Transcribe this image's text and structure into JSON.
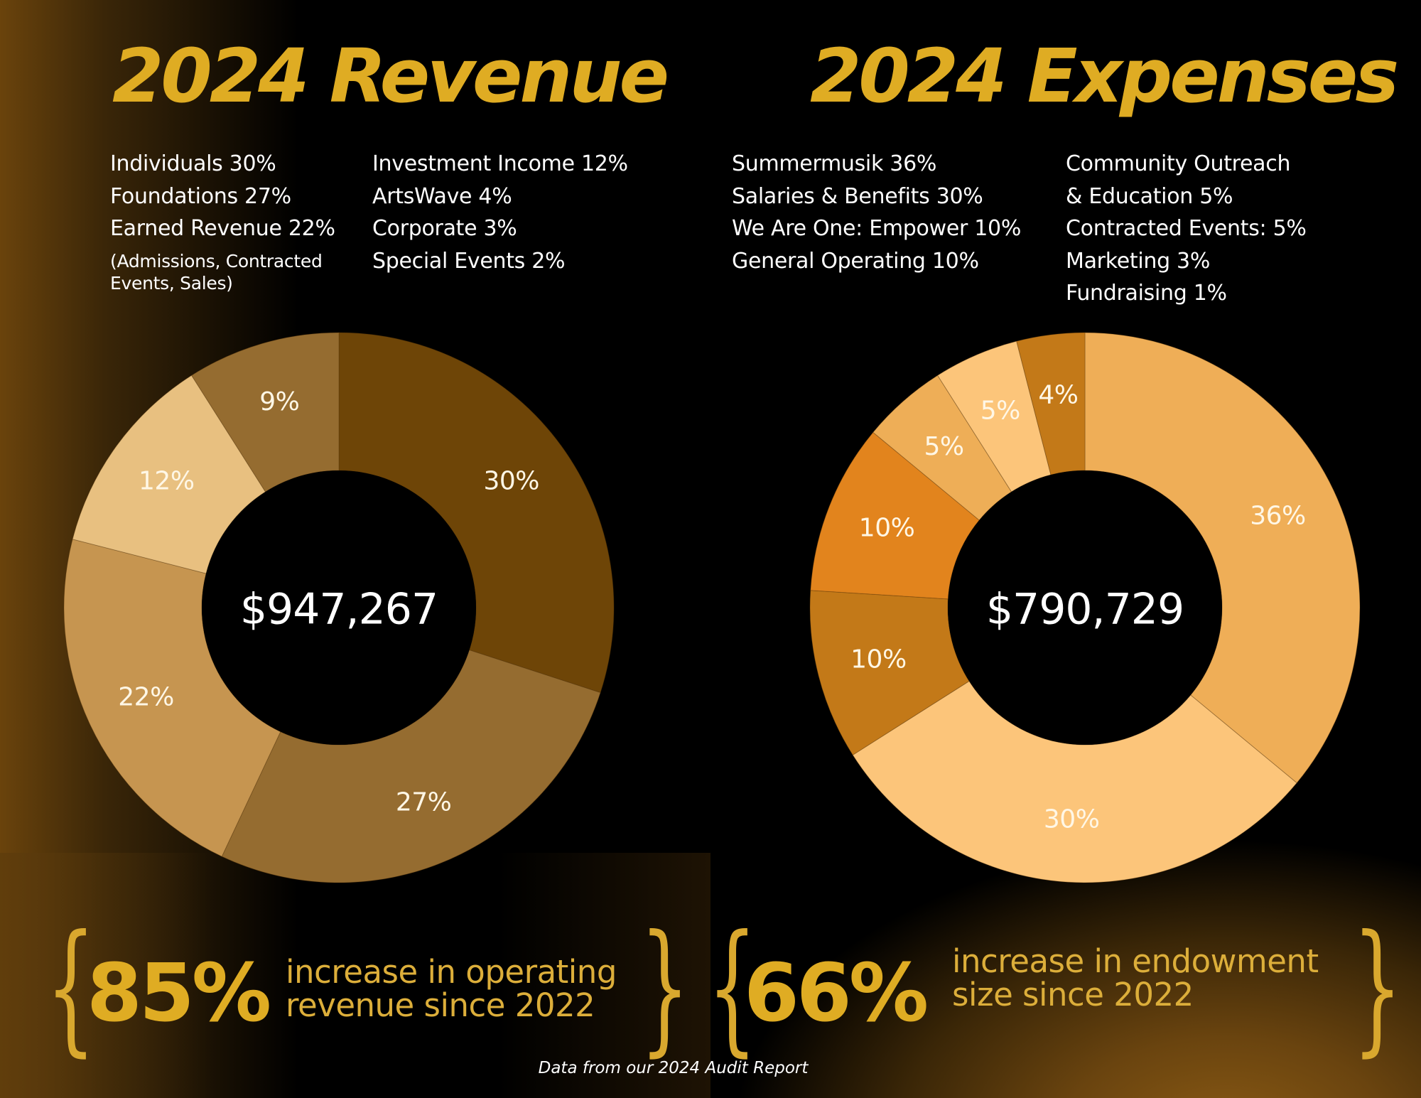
{
  "revenue": {
    "title": "2024 Revenue",
    "legend_col1": [
      "Individuals 30%",
      "Foundations 27%",
      "Earned Revenue 22%"
    ],
    "legend_note": [
      "(Admissions, Contracted",
      "Events, Sales)"
    ],
    "legend_col2": [
      "Investment Income 12%",
      "ArtsWave 4%",
      "Corporate 3%",
      "Special Events 2%"
    ],
    "total": "$947,267"
  },
  "expenses": {
    "title": "2024 Expenses",
    "legend_col1": [
      "Summermusik 36%",
      "Salaries & Benefits 30%",
      "We Are One: Empower 10%",
      "General Operating 10%"
    ],
    "legend_col2": [
      "Community Outreach",
      "& Education 5%",
      "Contracted Events: 5%",
      "Marketing 3%",
      "Fundraising 1%"
    ],
    "total": "$790,729"
  },
  "stats": [
    {
      "value": "85%",
      "line1": "increase in operating",
      "line2": "revenue since 2022"
    },
    {
      "value": "66%",
      "line1": "increase in endowment",
      "line2": "size since 2022"
    }
  ],
  "braces": {
    "open": "{",
    "close": "}"
  },
  "footer": "Data from our 2024 Audit Report",
  "colors": {
    "title": "#dfac23",
    "stat_text": "#dcae3a",
    "background": "#000000"
  },
  "chart_data": [
    {
      "type": "pie",
      "title": "2024 Revenue",
      "center_label": "$947,267",
      "donut": true,
      "start": "12 o'clock, clockwise",
      "slices": [
        {
          "label": "Individuals",
          "value": 30,
          "display": "30%",
          "color": "#6e4507"
        },
        {
          "label": "Foundations",
          "value": 27,
          "display": "27%",
          "color": "#956c30"
        },
        {
          "label": "Earned Revenue",
          "value": 22,
          "display": "22%",
          "color": "#c69550"
        },
        {
          "label": "Investment Income",
          "value": 12,
          "display": "12%",
          "color": "#e8c080"
        },
        {
          "label": "ArtsWave + Corporate + Special Events",
          "value": 9,
          "display": "9%",
          "color": "#956c30"
        }
      ]
    },
    {
      "type": "pie",
      "title": "2024 Expenses",
      "center_label": "$790,729",
      "donut": true,
      "start": "12 o'clock, clockwise",
      "slices": [
        {
          "label": "Summermusik",
          "value": 36,
          "display": "36%",
          "color": "#efae57"
        },
        {
          "label": "Salaries & Benefits",
          "value": 30,
          "display": "30%",
          "color": "#fcc57a"
        },
        {
          "label": "We Are One: Empower",
          "value": 10,
          "display": "10%",
          "color": "#c37918"
        },
        {
          "label": "General Operating",
          "value": 10,
          "display": "10%",
          "color": "#e2841d"
        },
        {
          "label": "Community Outreach & Education",
          "value": 5,
          "display": "5%",
          "color": "#eeae57"
        },
        {
          "label": "Contracted Events",
          "value": 5,
          "display": "5%",
          "color": "#fcc57a"
        },
        {
          "label": "Marketing + Fundraising",
          "value": 4,
          "display": "4%",
          "color": "#c37918"
        }
      ]
    }
  ]
}
